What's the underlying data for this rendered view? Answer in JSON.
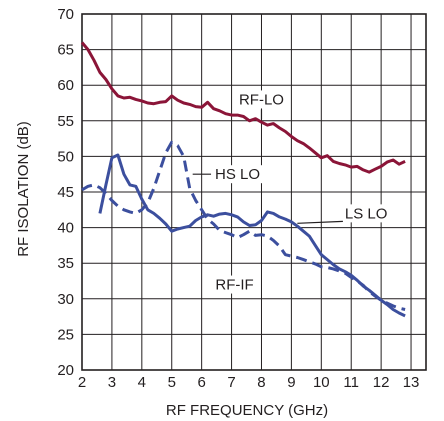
{
  "chart_data": {
    "type": "line",
    "xlabel": "RF FREQUENCY (GHz)",
    "ylabel": "RF ISOLATION (dB)",
    "xlim": [
      2,
      13.5
    ],
    "ylim": [
      20,
      70
    ],
    "xticks": [
      2,
      3,
      4,
      5,
      6,
      7,
      8,
      9,
      10,
      11,
      12,
      13
    ],
    "yticks": [
      20,
      25,
      30,
      35,
      40,
      45,
      50,
      55,
      60,
      65,
      70
    ],
    "grid": true,
    "colors": {
      "rf_lo": "#8b1538",
      "if_series": "#3c4f9e",
      "grid": "#231f20"
    },
    "series": [
      {
        "name": "RF-LO",
        "style": "solid",
        "color": "#8b1538",
        "x": [
          2.0,
          2.2,
          2.4,
          2.6,
          2.8,
          3.0,
          3.2,
          3.4,
          3.6,
          3.8,
          4.0,
          4.2,
          4.4,
          4.6,
          4.8,
          5.0,
          5.2,
          5.4,
          5.6,
          5.8,
          6.0,
          6.2,
          6.4,
          6.6,
          6.8,
          7.0,
          7.2,
          7.4,
          7.6,
          7.8,
          8.0,
          8.2,
          8.4,
          8.6,
          8.8,
          9.0,
          9.2,
          9.4,
          9.6,
          9.8,
          10.0,
          10.2,
          10.4,
          10.6,
          10.8,
          11.0,
          11.2,
          11.4,
          11.6,
          11.8,
          12.0,
          12.2,
          12.4,
          12.6,
          12.8
        ],
        "y": [
          66.0,
          65.0,
          63.5,
          61.8,
          60.8,
          59.5,
          58.5,
          58.2,
          58.3,
          58.0,
          57.8,
          57.5,
          57.4,
          57.6,
          57.7,
          58.5,
          57.9,
          57.5,
          57.3,
          57.0,
          56.9,
          57.6,
          56.7,
          56.4,
          56.0,
          55.8,
          55.8,
          55.6,
          55.0,
          55.3,
          54.8,
          54.4,
          54.6,
          54.0,
          53.5,
          52.8,
          52.2,
          51.8,
          51.2,
          50.5,
          49.8,
          50.1,
          49.3,
          49.0,
          48.8,
          48.5,
          48.6,
          48.1,
          47.8,
          48.2,
          48.6,
          49.2,
          49.5,
          48.9,
          49.3
        ]
      },
      {
        "name": "HS LO",
        "style": "dashed",
        "color": "#3c4f9e",
        "x": [
          2.0,
          2.2,
          2.4,
          2.6,
          2.8,
          3.0,
          3.2,
          3.4,
          3.6,
          3.8,
          4.0,
          4.2,
          4.4,
          4.6,
          4.8,
          5.0,
          5.2,
          5.4,
          5.6,
          5.8,
          6.0,
          6.2,
          6.4,
          6.6,
          6.8,
          7.0,
          7.2,
          7.4,
          7.6,
          7.8,
          8.0,
          8.2,
          8.4,
          8.6,
          8.8,
          9.0,
          9.2,
          9.4,
          9.6,
          9.8,
          10.0,
          10.2,
          10.4,
          10.6,
          10.8,
          11.0,
          11.2,
          11.4,
          11.6,
          11.8,
          12.0,
          12.2,
          12.4,
          12.6,
          12.8
        ],
        "y": [
          45.3,
          45.8,
          46.0,
          45.6,
          44.8,
          43.8,
          43.0,
          42.5,
          42.2,
          42.0,
          42.5,
          43.5,
          45.5,
          48.0,
          50.5,
          52.0,
          51.5,
          50.0,
          45.5,
          43.8,
          42.5,
          41.2,
          40.5,
          39.6,
          39.3,
          39.0,
          38.6,
          39.0,
          39.5,
          38.9,
          39.0,
          38.8,
          38.2,
          37.4,
          36.2,
          36.0,
          35.8,
          35.5,
          35.2,
          34.9,
          34.5,
          34.4,
          34.2,
          33.9,
          33.6,
          33.0,
          32.5,
          31.9,
          31.0,
          30.4,
          29.8,
          29.4,
          29.0,
          28.7,
          28.5
        ]
      },
      {
        "name": "LS LO",
        "style": "solid",
        "color": "#3c4f9e",
        "x": [
          2.6,
          2.8,
          3.0,
          3.2,
          3.4,
          3.6,
          3.8,
          4.0,
          4.2,
          4.4,
          4.6,
          4.8,
          5.0,
          5.2,
          5.4,
          5.6,
          5.8,
          6.0,
          6.2,
          6.4,
          6.6,
          6.8,
          7.0,
          7.2,
          7.4,
          7.6,
          7.8,
          8.0,
          8.2,
          8.4,
          8.6,
          8.8,
          9.0,
          9.2,
          9.4,
          9.6,
          9.8,
          10.0,
          10.2,
          10.4,
          10.6,
          10.8,
          11.0,
          11.2,
          11.4,
          11.6,
          11.8,
          12.0,
          12.2,
          12.4,
          12.6,
          12.8
        ],
        "y": [
          42.0,
          46.0,
          49.8,
          50.2,
          47.5,
          46.0,
          45.8,
          44.0,
          42.5,
          42.0,
          41.3,
          40.5,
          39.5,
          39.8,
          40.0,
          40.2,
          41.0,
          41.5,
          41.8,
          41.6,
          41.9,
          42.0,
          41.8,
          41.5,
          40.8,
          40.3,
          40.4,
          41.0,
          42.2,
          42.0,
          41.5,
          41.2,
          40.8,
          40.2,
          39.5,
          38.8,
          37.5,
          36.2,
          35.5,
          34.8,
          34.2,
          33.8,
          33.3,
          32.6,
          31.8,
          31.2,
          30.5,
          29.8,
          29.2,
          28.5,
          28.0,
          27.6
        ]
      }
    ],
    "annotations": [
      {
        "text": "RF-LO",
        "x": 8.0,
        "y": 58.0,
        "pointer_x": 8.0,
        "pointer_y": 55.2
      },
      {
        "text": "HS LO",
        "x": 7.2,
        "y": 47.5,
        "pointer_x": 5.7,
        "pointer_y": 47.5
      },
      {
        "text": "LS LO",
        "x": 11.5,
        "y": 42.0,
        "pointer_x": 9.2,
        "pointer_y": 40.6
      },
      {
        "text": "RF-IF",
        "x": 7.1,
        "y": 32.0,
        "pointer_x": null,
        "pointer_y": null
      }
    ]
  }
}
